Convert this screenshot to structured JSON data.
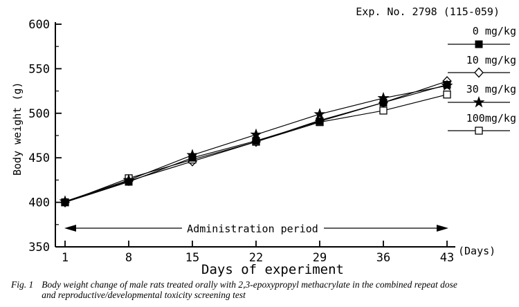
{
  "chart_data": {
    "type": "line",
    "title": "Exp. No. 2798 (115-059)",
    "xlabel": "Days of experiment",
    "ylabel": "Body weight (g)",
    "x_unit_label": "(Days)",
    "annotation": "Administration period",
    "x": [
      1,
      8,
      15,
      22,
      29,
      36,
      43
    ],
    "xticks": [
      1,
      8,
      15,
      22,
      29,
      36,
      43
    ],
    "xlim": [
      1,
      43
    ],
    "ylim": [
      350,
      600
    ],
    "ytick_step": 50,
    "yminor_step": 25,
    "grid": false,
    "legend_position": "right",
    "line_color": "#000000",
    "series": [
      {
        "name": "0 mg/kg",
        "marker": "filled-square",
        "values": [
          400,
          423,
          450,
          469,
          491,
          512,
          532
        ]
      },
      {
        "name": "10 mg/kg",
        "marker": "open-diamond",
        "values": [
          400,
          424,
          446,
          468,
          492,
          512,
          536
        ]
      },
      {
        "name": "30 mg/kg",
        "marker": "filled-star",
        "values": [
          401,
          425,
          453,
          476,
          499,
          517,
          531
        ]
      },
      {
        "name": "100mg/kg",
        "marker": "open-square",
        "values": [
          400,
          427,
          448,
          468,
          490,
          503,
          521
        ]
      }
    ]
  },
  "caption": {
    "fig_label": "Fig. 1",
    "line1": "Body weight change of male rats treated orally with 2,3-epoxypropyl methacrylate in the combined repeat dose",
    "line2": "and reproductive/developmental toxicity screening test"
  },
  "colors": {
    "foreground": "#000000",
    "background": "#ffffff"
  }
}
